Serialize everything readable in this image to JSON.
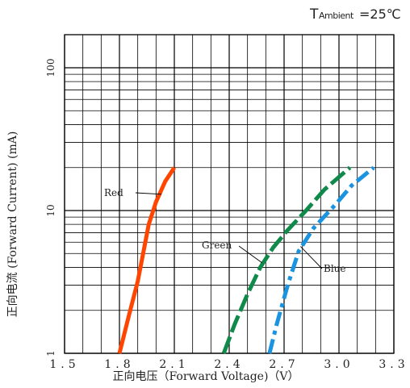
{
  "condition": {
    "symbol": "T",
    "subscript": "Ambient",
    "value": "=25℃"
  },
  "chart_data": {
    "type": "line",
    "title": "",
    "xlabel": "正向电压（Forward Voltage)（V）",
    "ylabel": "正向电流 (Forward Current) (mA)",
    "x_tick_labels": [
      "1.5",
      "1.8",
      "2.1",
      "2.4",
      "2.7",
      "3.0",
      "3.3"
    ],
    "y_tick_labels": [
      "1",
      "10",
      "100"
    ],
    "xlim": [
      1.5,
      3.3
    ],
    "ylim": [
      1,
      150
    ],
    "y_scale": "log",
    "grid": true,
    "series": [
      {
        "name": "Red",
        "color": "#ff4500",
        "line_style": "solid",
        "x": [
          1.8,
          1.85,
          1.9,
          1.96,
          2.0,
          2.05,
          2.1
        ],
        "y": [
          1,
          1.8,
          3.2,
          8.0,
          11.5,
          16,
          20
        ]
      },
      {
        "name": "Green",
        "color": "#0f8a4b",
        "line_style": "dashed",
        "x": [
          2.37,
          2.43,
          2.5,
          2.57,
          2.64,
          2.72,
          2.82,
          2.92,
          3.06
        ],
        "y": [
          1,
          1.6,
          2.6,
          4.0,
          5.5,
          7.3,
          10,
          14,
          20
        ]
      },
      {
        "name": "Blue",
        "color": "#1a93e0",
        "line_style": "dashdot",
        "x": [
          2.62,
          2.66,
          2.72,
          2.78,
          2.86,
          2.98,
          3.07,
          3.19
        ],
        "y": [
          1,
          1.6,
          3.0,
          5.2,
          7.5,
          11,
          15,
          20
        ]
      }
    ]
  }
}
